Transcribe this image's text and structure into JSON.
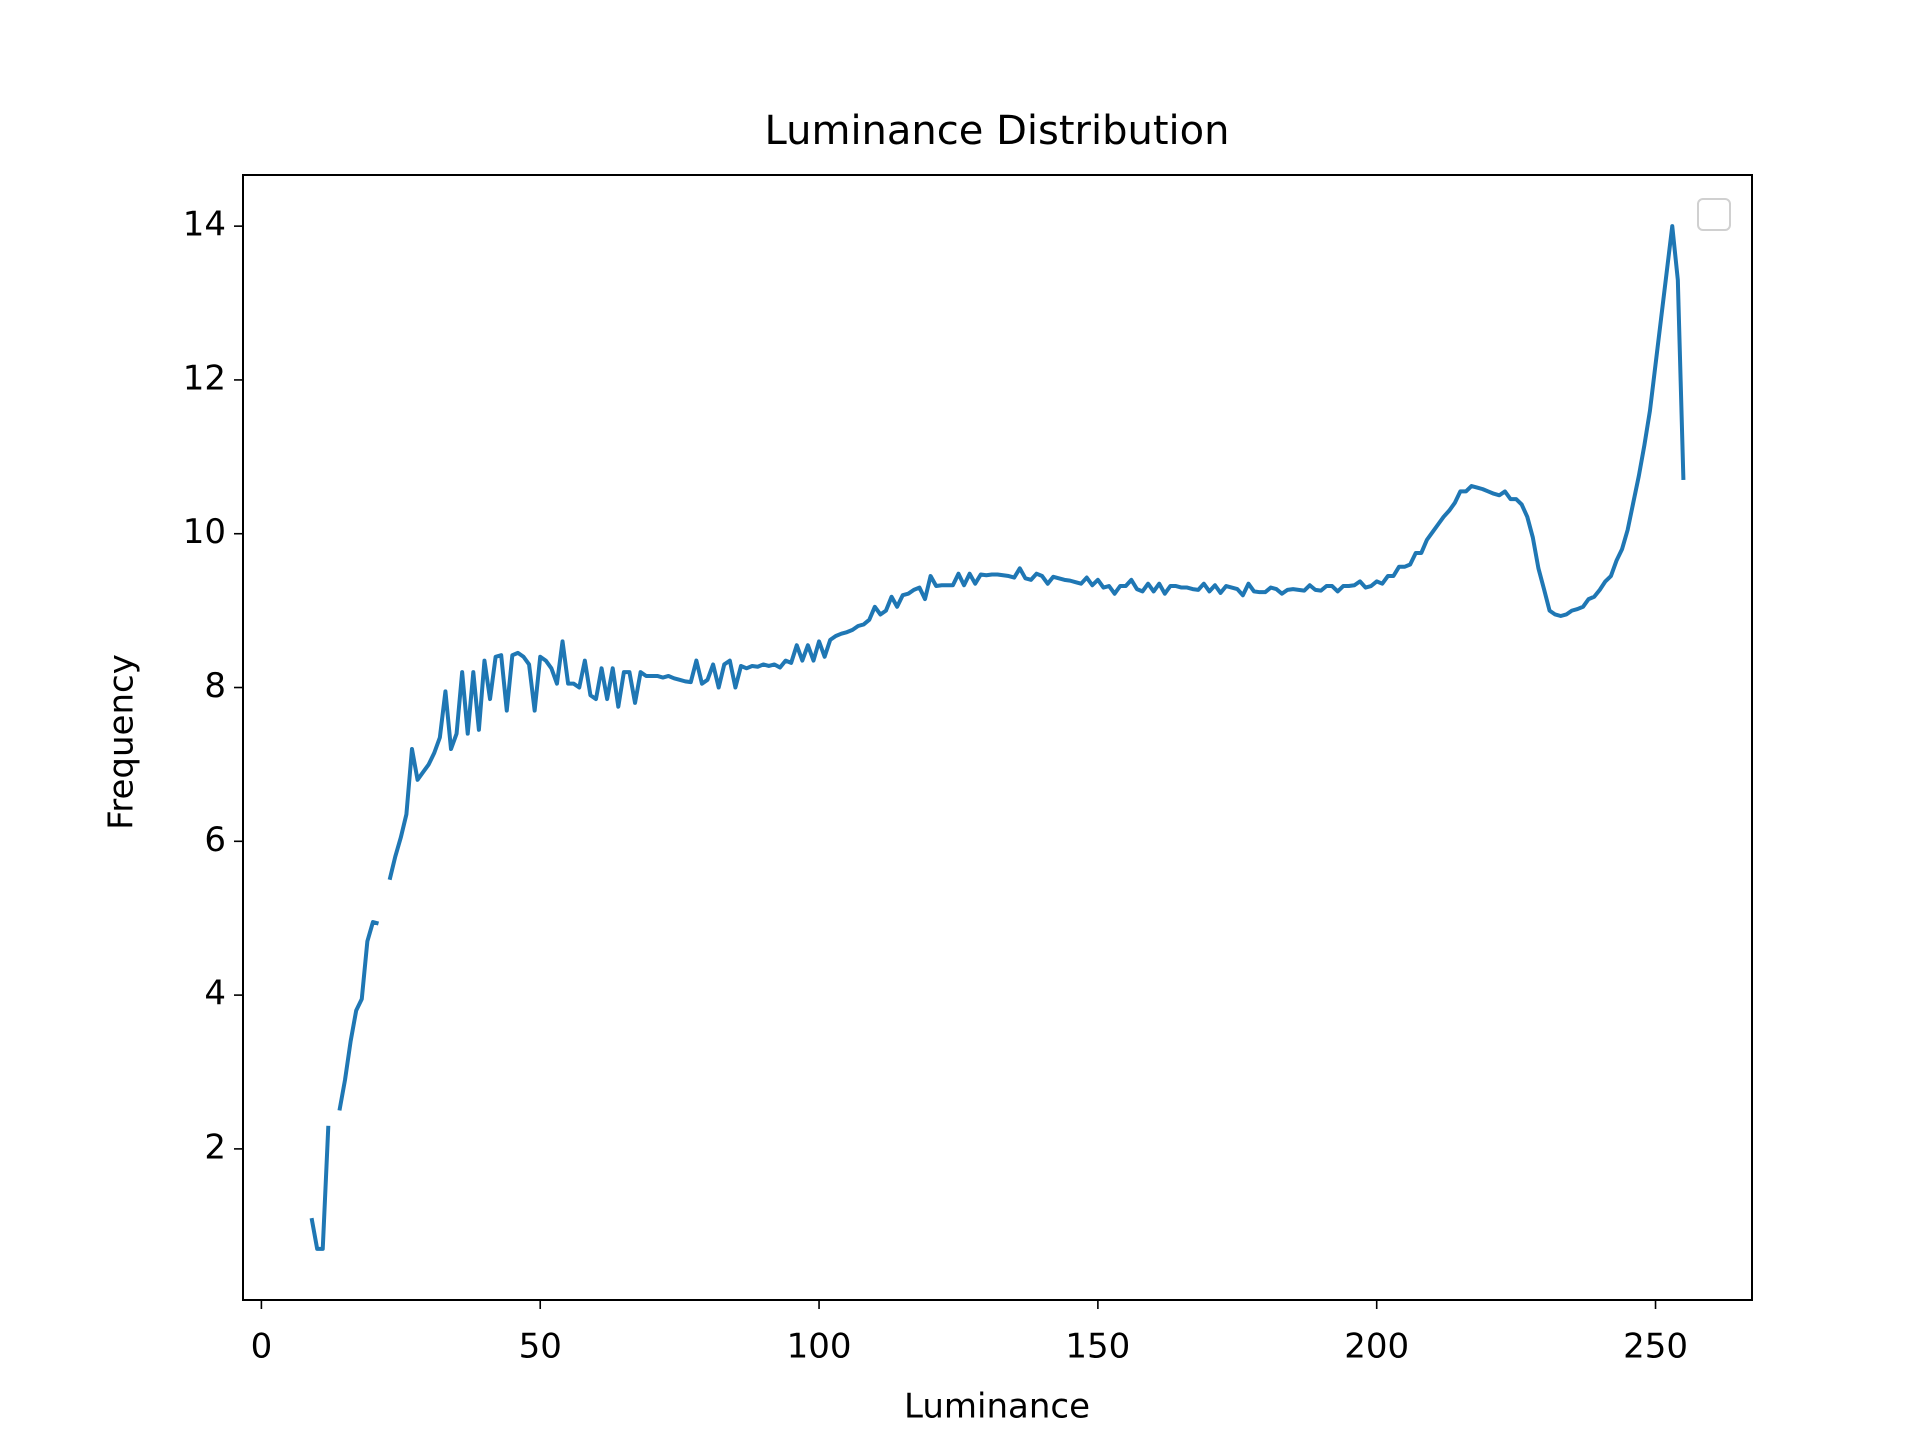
{
  "chart_data": {
    "type": "line",
    "title": "Luminance Distribution",
    "xlabel": "Luminance",
    "ylabel": "Frequency",
    "x": [
      9,
      10,
      11,
      12,
      13,
      14,
      15,
      16,
      17,
      18,
      19,
      20,
      21,
      22,
      23,
      24,
      25,
      26,
      27,
      28,
      29,
      30,
      31,
      32,
      33,
      34,
      35,
      36,
      37,
      38,
      39,
      40,
      41,
      42,
      43,
      44,
      45,
      46,
      47,
      48,
      49,
      50,
      51,
      52,
      53,
      54,
      55,
      56,
      57,
      58,
      59,
      60,
      61,
      62,
      63,
      64,
      65,
      66,
      67,
      68,
      69,
      70,
      71,
      72,
      73,
      74,
      75,
      76,
      77,
      78,
      79,
      80,
      81,
      82,
      83,
      84,
      85,
      86,
      87,
      88,
      89,
      90,
      91,
      92,
      93,
      94,
      95,
      96,
      97,
      98,
      99,
      100,
      101,
      102,
      103,
      104,
      105,
      106,
      107,
      108,
      109,
      110,
      111,
      112,
      113,
      114,
      115,
      116,
      117,
      118,
      119,
      120,
      121,
      122,
      123,
      124,
      125,
      126,
      127,
      128,
      129,
      130,
      131,
      132,
      133,
      134,
      135,
      136,
      137,
      138,
      139,
      140,
      141,
      142,
      143,
      144,
      145,
      146,
      147,
      148,
      149,
      150,
      151,
      152,
      153,
      154,
      155,
      156,
      157,
      158,
      159,
      160,
      161,
      162,
      163,
      164,
      165,
      166,
      167,
      168,
      169,
      170,
      171,
      172,
      173,
      174,
      175,
      176,
      177,
      178,
      179,
      180,
      181,
      182,
      183,
      184,
      185,
      186,
      187,
      188,
      189,
      190,
      191,
      192,
      193,
      194,
      195,
      196,
      197,
      198,
      199,
      200,
      201,
      202,
      203,
      204,
      205,
      206,
      207,
      208,
      209,
      210,
      211,
      212,
      213,
      214,
      215,
      216,
      217,
      218,
      219,
      220,
      221,
      222,
      223,
      224,
      225,
      226,
      227,
      228,
      229,
      230,
      231,
      232,
      233,
      234,
      235,
      236,
      237,
      238,
      239,
      240,
      241,
      242,
      243,
      244,
      245,
      246,
      247,
      248,
      249,
      250,
      251,
      252,
      253,
      254,
      255
    ],
    "series": [
      {
        "color": "#1f77b4",
        "values": [
          1.1,
          0.7,
          0.7,
          2.3,
          null,
          2.5,
          2.9,
          3.4,
          3.8,
          3.95,
          4.7,
          4.95,
          4.93,
          null,
          5.5,
          5.8,
          6.05,
          6.35,
          7.2,
          6.8,
          6.9,
          7.0,
          7.15,
          7.35,
          7.95,
          7.2,
          7.4,
          8.2,
          7.4,
          8.2,
          7.45,
          8.35,
          7.85,
          8.4,
          8.42,
          7.7,
          8.42,
          8.45,
          8.4,
          8.3,
          7.7,
          8.4,
          8.35,
          8.25,
          8.05,
          8.6,
          8.05,
          8.05,
          8.0,
          8.35,
          7.9,
          7.85,
          8.25,
          7.85,
          8.25,
          7.75,
          8.2,
          8.2,
          7.8,
          8.2,
          8.15,
          8.15,
          8.15,
          8.13,
          8.15,
          8.12,
          8.1,
          8.08,
          8.07,
          8.35,
          8.05,
          8.1,
          8.3,
          8.0,
          8.3,
          8.35,
          8.0,
          8.28,
          8.25,
          8.28,
          8.27,
          8.3,
          8.28,
          8.3,
          8.26,
          8.35,
          8.32,
          8.55,
          8.35,
          8.55,
          8.35,
          8.6,
          8.4,
          8.62,
          8.67,
          8.7,
          8.72,
          8.75,
          8.8,
          8.82,
          8.88,
          9.05,
          8.95,
          9.0,
          9.18,
          9.05,
          9.2,
          9.22,
          9.27,
          9.3,
          9.15,
          9.45,
          9.32,
          9.33,
          9.33,
          9.33,
          9.48,
          9.33,
          9.48,
          9.35,
          9.47,
          9.46,
          9.47,
          9.47,
          9.46,
          9.45,
          9.43,
          9.55,
          9.42,
          9.4,
          9.48,
          9.45,
          9.35,
          9.44,
          9.42,
          9.4,
          9.39,
          9.37,
          9.35,
          9.43,
          9.33,
          9.4,
          9.3,
          9.32,
          9.22,
          9.32,
          9.32,
          9.4,
          9.28,
          9.25,
          9.35,
          9.25,
          9.35,
          9.22,
          9.32,
          9.32,
          9.3,
          9.3,
          9.28,
          9.27,
          9.35,
          9.25,
          9.33,
          9.23,
          9.32,
          9.3,
          9.28,
          9.2,
          9.35,
          9.25,
          9.24,
          9.24,
          9.3,
          9.28,
          9.22,
          9.27,
          9.28,
          9.27,
          9.26,
          9.33,
          9.27,
          9.26,
          9.32,
          9.32,
          9.25,
          9.32,
          9.32,
          9.33,
          9.38,
          9.3,
          9.32,
          9.38,
          9.35,
          9.45,
          9.45,
          9.57,
          9.57,
          9.6,
          9.75,
          9.75,
          9.92,
          10.02,
          10.12,
          10.22,
          10.3,
          10.4,
          10.55,
          10.55,
          10.62,
          10.6,
          10.58,
          10.55,
          10.52,
          10.5,
          10.55,
          10.45,
          10.45,
          10.38,
          10.22,
          9.95,
          9.55,
          9.28,
          9.0,
          8.95,
          8.93,
          8.95,
          9.0,
          9.02,
          9.05,
          9.15,
          9.18,
          9.27,
          9.38,
          9.45,
          9.65,
          9.8,
          10.05,
          10.4,
          10.75,
          11.15,
          11.6,
          12.2,
          12.8,
          13.4,
          14.0,
          13.3,
          10.7
        ]
      }
    ],
    "xlim": [
      -3.3,
      267.3
    ],
    "xticks": [
      0,
      50,
      100,
      150,
      200,
      250
    ],
    "ylim": [
      0.035,
      14.665
    ],
    "yticks": [
      2,
      4,
      6,
      8,
      10,
      12,
      14
    ],
    "grid": false,
    "legend": "upper right"
  }
}
